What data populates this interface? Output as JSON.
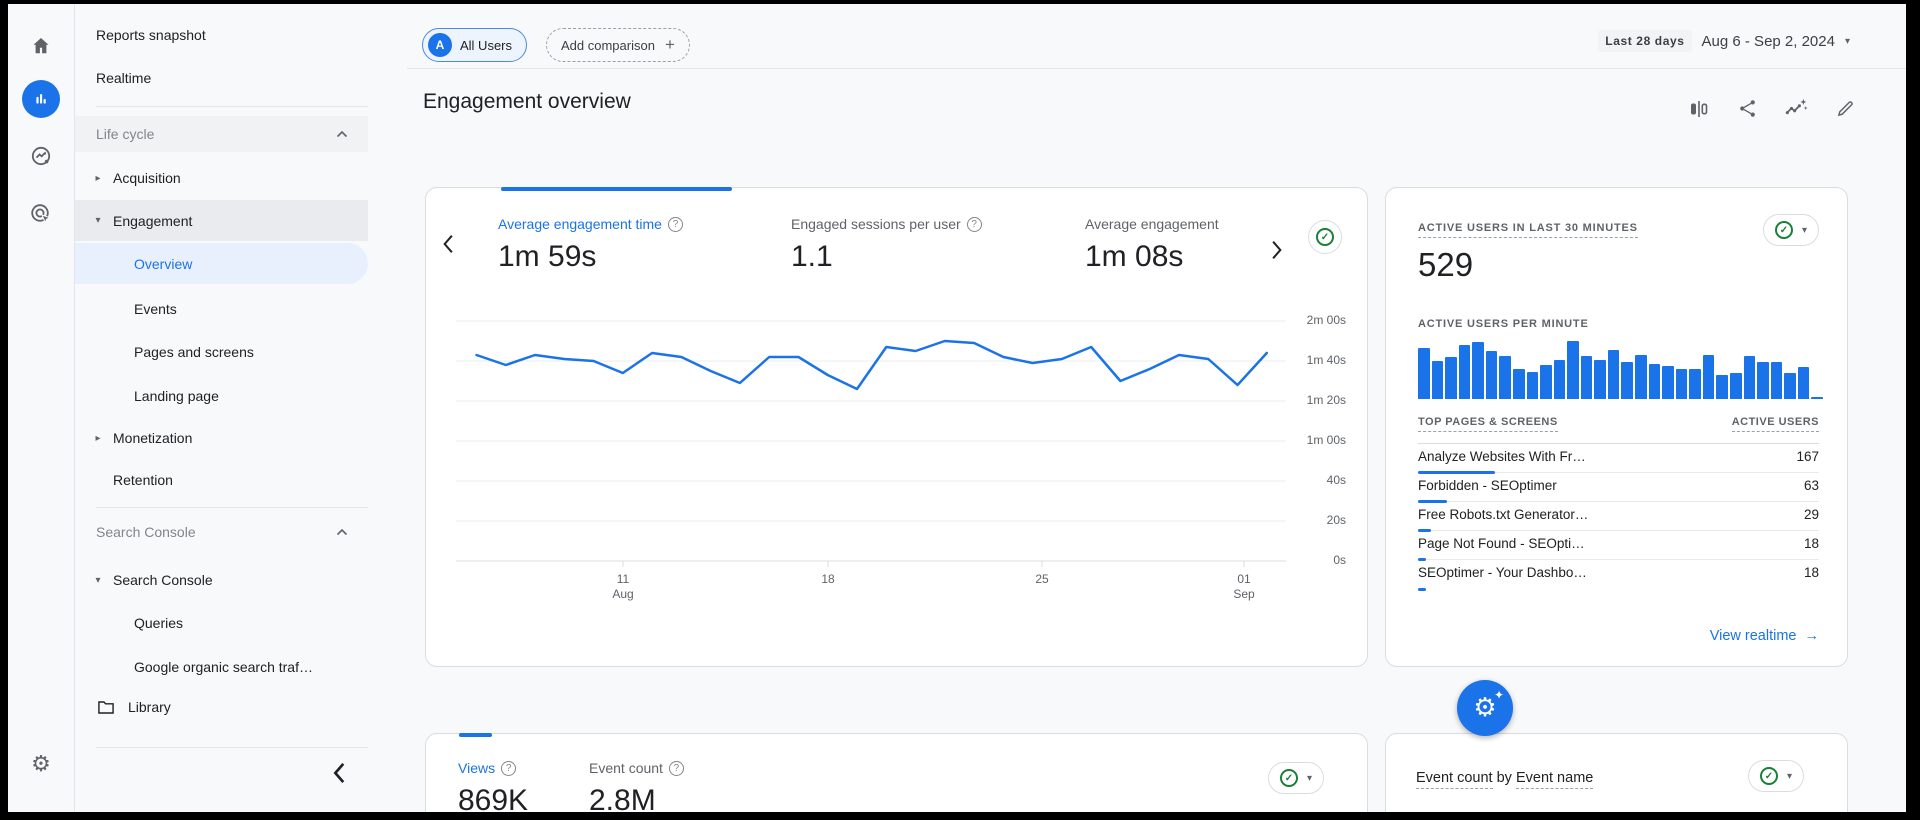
{
  "colors": {
    "accent": "#1a73e8",
    "green": "#188038",
    "text": "#202124",
    "muted": "#5f6368",
    "bar_blue": "#1a73e8"
  },
  "icons": {
    "tri_collapsed": "▸",
    "tri_expanded": "▾",
    "caret_down": "▾",
    "check": "✓",
    "gear": "⚙",
    "sparkle": "✦",
    "arrow_right": "→",
    "plus": "+",
    "help": "?"
  },
  "sidebar": {
    "top_items": [
      "Reports snapshot",
      "Realtime"
    ],
    "sections": [
      {
        "header": "Life cycle",
        "items": [
          {
            "label": "Acquisition",
            "state": "collapsed"
          },
          {
            "label": "Engagement",
            "state": "expanded"
          },
          {
            "label": "Overview",
            "state": "active-child"
          },
          {
            "label": "Events",
            "state": "child"
          },
          {
            "label": "Pages and screens",
            "state": "child"
          },
          {
            "label": "Landing page",
            "state": "child"
          },
          {
            "label": "Monetization",
            "state": "collapsed"
          },
          {
            "label": "Retention",
            "state": "plain"
          }
        ]
      },
      {
        "header": "Search Console",
        "items": [
          {
            "label": "Search Console",
            "state": "expanded"
          },
          {
            "label": "Queries",
            "state": "child"
          },
          {
            "label": "Google organic search traf…",
            "state": "child"
          },
          {
            "label": "Library",
            "state": "folder"
          }
        ]
      }
    ]
  },
  "topbar": {
    "avatar": "A",
    "all_users": "All Users",
    "add_comparison": "Add comparison",
    "date_badge": "Last 28 days",
    "date_range": "Aug 6 - Sep 2, 2024"
  },
  "page": {
    "title": "Engagement overview"
  },
  "engagement_card": {
    "metrics": [
      {
        "label": "Average engagement time",
        "value": "1m 59s",
        "active": true
      },
      {
        "label": "Engaged sessions per user",
        "value": "1.1",
        "active": false
      },
      {
        "label": "Average engagement",
        "value": "1m 08s",
        "active": false
      }
    ]
  },
  "realtime_card": {
    "title": "ACTIVE USERS IN LAST 30 MINUTES",
    "value": "529",
    "per_minute": "ACTIVE USERS PER MINUTE",
    "table": {
      "col1": "TOP PAGES & SCREENS",
      "col2": "ACTIVE USERS",
      "rows": [
        {
          "name": "Analyze Websites With Fr…",
          "value": 167
        },
        {
          "name": "Forbidden - SEOptimer",
          "value": 63
        },
        {
          "name": "Free Robots.txt Generator…",
          "value": 29
        },
        {
          "name": "Page Not Found - SEOpti…",
          "value": 18
        },
        {
          "name": "SEOptimer - Your Dashbo…",
          "value": 18
        }
      ]
    },
    "link": "View realtime"
  },
  "views_card": {
    "metrics": [
      {
        "label": "Views",
        "value": "869K",
        "active": true
      },
      {
        "label": "Event count",
        "value": "2.8M",
        "active": false
      }
    ]
  },
  "event_card": {
    "part1": "Event count",
    "middle": " by ",
    "part2": "Event name"
  },
  "chart_data": [
    {
      "type": "line",
      "title": "Average engagement time per day",
      "unit": "seconds",
      "x_start": "Aug 6, 2024",
      "x_end": "Sep 2, 2024",
      "x_tick_labels": [
        [
          "11",
          "Aug"
        ],
        [
          "18"
        ],
        [
          "25"
        ],
        [
          "01",
          "Sep"
        ]
      ],
      "y_tick_labels": [
        "2m 00s",
        "1m 40s",
        "1m 20s",
        "1m 00s",
        "40s",
        "20s",
        "0s"
      ],
      "ylim_seconds": [
        0,
        126
      ],
      "grid": true,
      "values_seconds": [
        103,
        98,
        103,
        101,
        100,
        94,
        104,
        102,
        95,
        89,
        102,
        102,
        93,
        86,
        107,
        105,
        110,
        109,
        102,
        99,
        101,
        107,
        90,
        96,
        103,
        101,
        88,
        104
      ]
    },
    {
      "type": "bar",
      "title": "Active users per minute",
      "minutes": 30,
      "values_relative": [
        88,
        65,
        73,
        93,
        98,
        82,
        74,
        51,
        46,
        59,
        67,
        100,
        74,
        68,
        85,
        64,
        76,
        60,
        57,
        51,
        51,
        76,
        41,
        44,
        74,
        63,
        63,
        44,
        55,
        3
      ]
    }
  ]
}
